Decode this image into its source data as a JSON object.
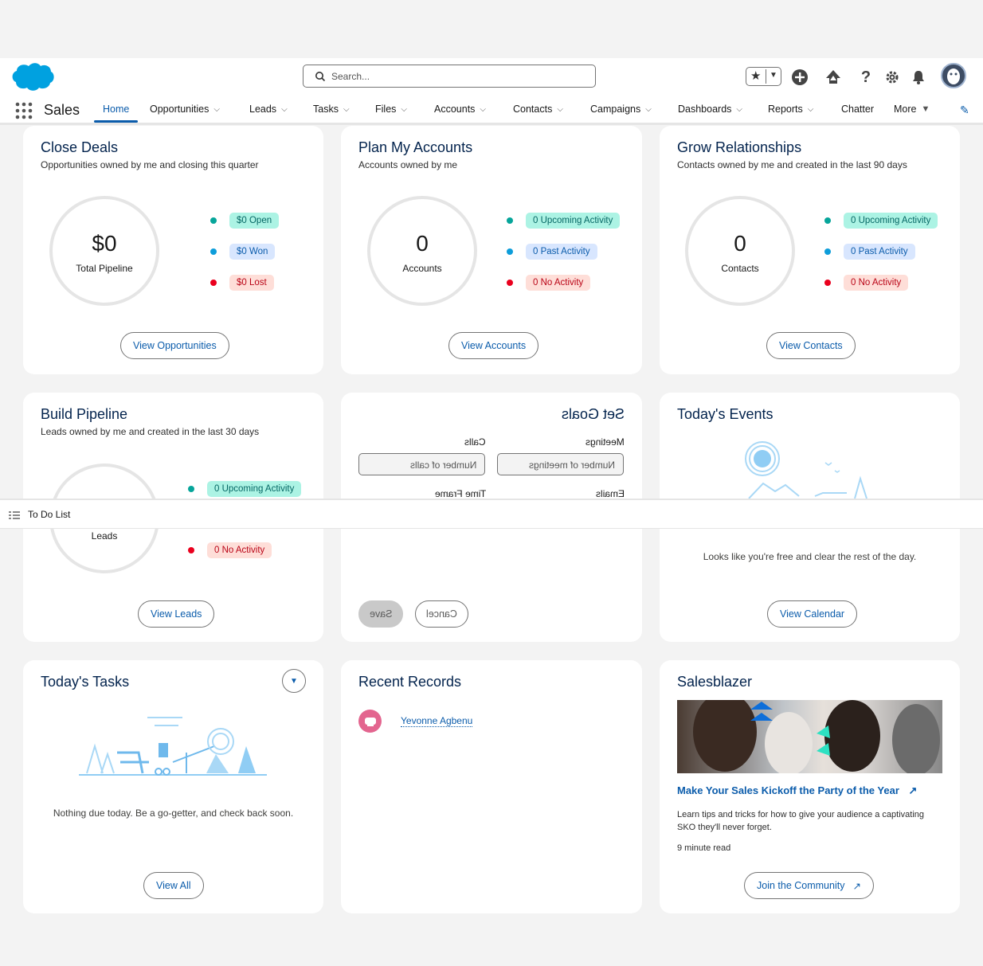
{
  "header": {
    "search_placeholder": "Search...",
    "icons": [
      "favorites-star-icon",
      "add-icon",
      "trailhead-icon",
      "help-icon",
      "setup-gear-icon",
      "bell-icon",
      "avatar"
    ]
  },
  "nav": {
    "app_name": "Sales",
    "items": [
      {
        "label": "Home",
        "active": true
      },
      {
        "label": "Opportunities"
      },
      {
        "label": "Leads"
      },
      {
        "label": "Tasks"
      },
      {
        "label": "Files"
      },
      {
        "label": "Accounts"
      },
      {
        "label": "Contacts"
      },
      {
        "label": "Campaigns"
      },
      {
        "label": "Dashboards"
      },
      {
        "label": "Reports"
      },
      {
        "label": "Chatter"
      },
      {
        "label": "More"
      }
    ]
  },
  "close_deals": {
    "title": "Close Deals",
    "subtitle": "Opportunities owned by me and closing this quarter",
    "big": "$0",
    "label": "Total Pipeline",
    "legend": [
      "$0 Open",
      "$0 Won",
      "$0 Lost"
    ],
    "button": "View Opportunities"
  },
  "plan_accounts": {
    "title": "Plan My Accounts",
    "subtitle": "Accounts owned by me",
    "big": "0",
    "label": "Accounts",
    "legend": [
      "0 Upcoming Activity",
      "0 Past Activity",
      "0 No Activity"
    ],
    "button": "View Accounts"
  },
  "grow_relationships": {
    "title": "Grow Relationships",
    "subtitle": "Contacts owned by me and created in the last 90 days",
    "big": "0",
    "label": "Contacts",
    "legend": [
      "0 Upcoming Activity",
      "0 Past Activity",
      "0 No Activity"
    ],
    "button": "View Contacts"
  },
  "build_pipeline": {
    "title": "Build Pipeline",
    "subtitle": "Leads owned by me and created in the last 30 days",
    "label": "Leads",
    "legend": [
      "0 Upcoming Activity",
      "0 No Activity"
    ],
    "button": "View Leads"
  },
  "set_goals": {
    "title": "Set Goals",
    "meetings_label": "Meetings",
    "meetings_placeholder": "Number of meetings",
    "calls_label": "Calls",
    "calls_placeholder": "Number of calls",
    "emails_label": "Emails",
    "timeframe_label": "Time Frame",
    "save": "Save",
    "cancel": "Cancel"
  },
  "todays_events": {
    "title": "Today's Events",
    "message": "Looks like you're free and clear the rest of the day.",
    "button": "View Calendar"
  },
  "todo_bar": {
    "label": "To Do List"
  },
  "todays_tasks": {
    "title": "Today's Tasks",
    "message": "Nothing due today. Be a go-getter, and check back soon.",
    "button": "View All"
  },
  "recent_records": {
    "title": "Recent Records",
    "items": [
      {
        "name": "Yevonne Agbenu"
      }
    ]
  },
  "salesblazer": {
    "title": "Salesblazer",
    "link": "Make Your Sales Kickoff the Party of the Year",
    "description": "Learn tips and tricks for how to give your audience a captivating SKO they'll never forget.",
    "read_time": "9 minute read",
    "button": "Join the Community"
  },
  "colors": {
    "brand": "#0b5cab",
    "title": "#03234d",
    "green_dot": "#06a59a",
    "blue_dot": "#0d9dda",
    "red_dot": "#ea001e"
  }
}
